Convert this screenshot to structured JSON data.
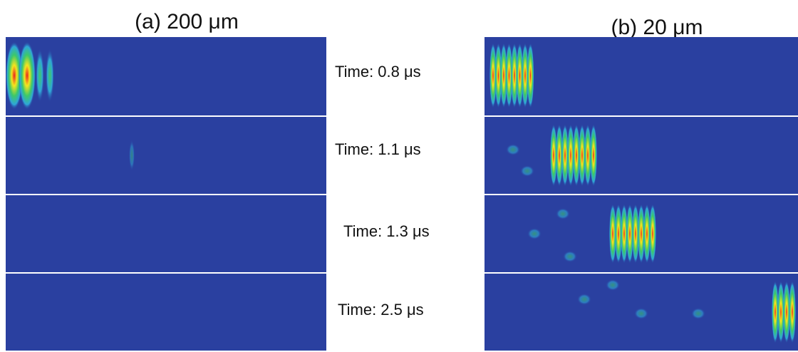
{
  "panels": [
    {
      "title": "(a) 200 μm"
    },
    {
      "title": "(b) 20 μm"
    }
  ],
  "time_labels": [
    "Time: 0.8 μs",
    "Time: 1.1 μs",
    "Time: 1.3 μs",
    "Time: 2.5 μs"
  ]
}
